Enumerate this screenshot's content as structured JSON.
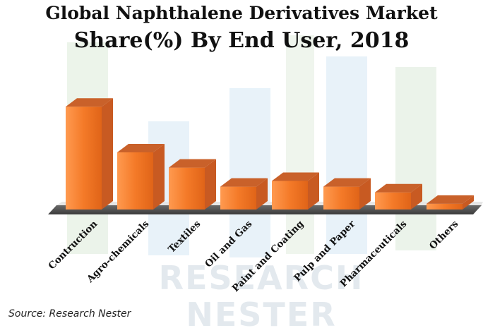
{
  "chart_data": {
    "type": "bar",
    "title": "Global Naphthalene Derivatives Market",
    "subtitle": "Share(%) By End User, 2018",
    "categories": [
      "Contruction",
      "Agro-chemicals",
      "Textiles",
      "Oil and Gas",
      "Paint and Coating",
      "Pulp and Paper",
      "Pharmaceuticals",
      "Others"
    ],
    "values": [
      27,
      15,
      11,
      6,
      7.5,
      6,
      4.5,
      1.5
    ],
    "ylim": [
      0,
      30
    ],
    "grid": false,
    "legend": "none",
    "bar_color": "#f08030",
    "bar_top_color": "#c9612a",
    "bar_side_color": "#c85a22",
    "floor_color": "#555555"
  },
  "source": "Source: Research Nester",
  "watermark": [
    "RESEARCH",
    "NESTER"
  ]
}
